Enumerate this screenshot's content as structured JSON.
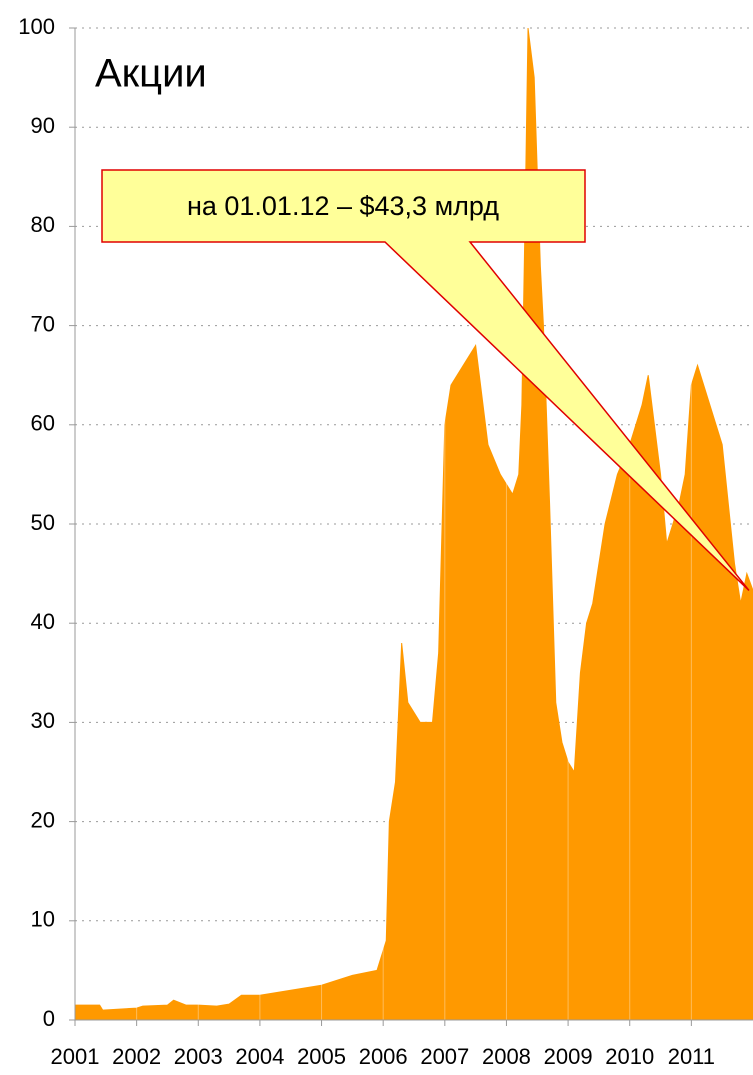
{
  "chart_data": {
    "type": "area",
    "title": "Акции",
    "annotation": "на 01.01.12 – $43,3 млрд",
    "color": "#ff9900",
    "x": [
      2001,
      2001.4,
      2001.45,
      2002.0,
      2002.1,
      2002.5,
      2002.6,
      2002.8,
      2003.0,
      2003.3,
      2003.5,
      2003.7,
      2004.0,
      2004.5,
      2005.0,
      2005.5,
      2005.9,
      2006.0,
      2006.05,
      2006.1,
      2006.2,
      2006.3,
      2006.4,
      2006.6,
      2006.8,
      2006.9,
      2007.0,
      2007.1,
      2007.3,
      2007.5,
      2007.7,
      2007.9,
      2008.1,
      2008.2,
      2008.25,
      2008.3,
      2008.35,
      2008.45,
      2008.55,
      2008.6,
      2008.7,
      2008.8,
      2008.9,
      2009.0,
      2009.1,
      2009.2,
      2009.3,
      2009.4,
      2009.6,
      2009.8,
      2010.0,
      2010.2,
      2010.3,
      2010.4,
      2010.5,
      2010.6,
      2010.8,
      2010.9,
      2011.0,
      2011.1,
      2011.3,
      2011.5,
      2011.7,
      2011.8,
      2011.9,
      2012.0
    ],
    "values": [
      1.5,
      1.5,
      1.0,
      1.2,
      1.4,
      1.5,
      2.0,
      1.5,
      1.5,
      1.4,
      1.6,
      2.5,
      2.5,
      3.0,
      3.5,
      4.5,
      5.0,
      7.0,
      8,
      20,
      24,
      38,
      32,
      30,
      30,
      37,
      60,
      64,
      66,
      68,
      58,
      55,
      53,
      55,
      62,
      80,
      100,
      95,
      76,
      70,
      52,
      32,
      28,
      26,
      25,
      35,
      40,
      42,
      50,
      55,
      58,
      62,
      65,
      60,
      55,
      48,
      52,
      55,
      64,
      66,
      62,
      58,
      46,
      42,
      45,
      43.3
    ],
    "xlim": [
      2001,
      2012
    ],
    "xticks": [
      2001,
      2002,
      2003,
      2004,
      2005,
      2006,
      2007,
      2008,
      2009,
      2010,
      2011
    ],
    "ylim": [
      0,
      100
    ],
    "yticks": [
      0,
      10,
      20,
      30,
      40,
      50,
      60,
      70,
      80,
      90,
      100
    ],
    "grid": true
  }
}
